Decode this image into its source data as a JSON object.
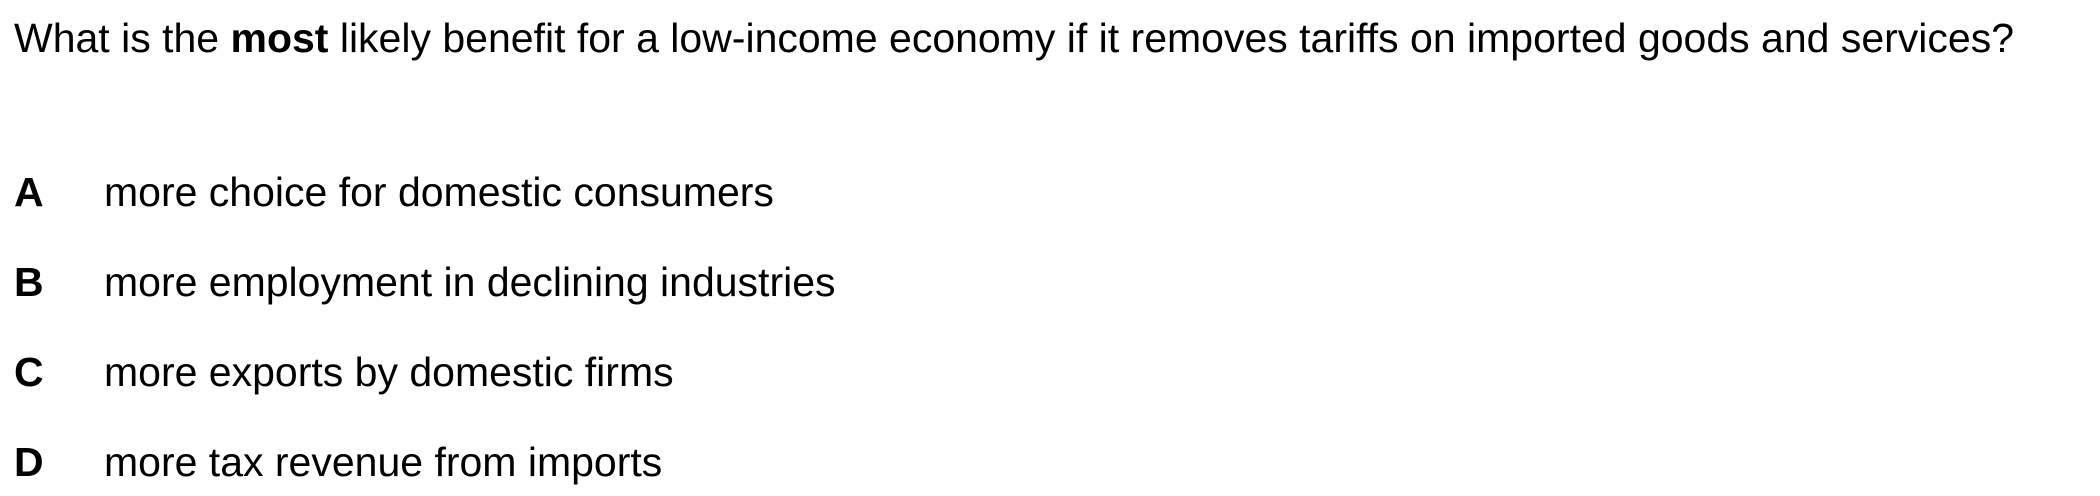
{
  "question": {
    "before": "What is the ",
    "emphasis": "most",
    "after": " likely benefit for a low-income economy if it removes tariffs on imported goods and services?"
  },
  "options": [
    {
      "letter": "A",
      "text": "more choice for domestic consumers"
    },
    {
      "letter": "B",
      "text": "more employment in declining industries"
    },
    {
      "letter": "C",
      "text": "more exports by domestic firms"
    },
    {
      "letter": "D",
      "text": "more tax revenue from imports"
    }
  ]
}
